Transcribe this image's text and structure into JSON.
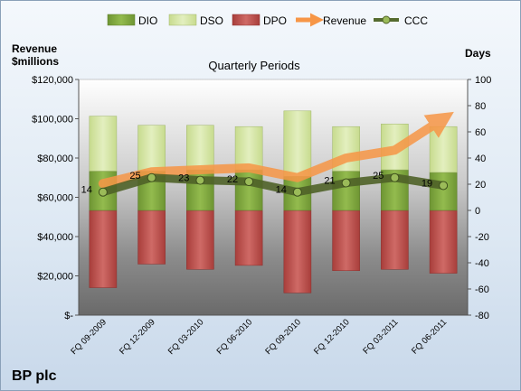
{
  "chart_data": {
    "type": "bar",
    "title": "Quarterly Periods",
    "company": "BP plc",
    "left_axis_label": [
      "Revenue",
      "$millions"
    ],
    "right_axis_label": "Days",
    "left_ylim": [
      0,
      120000
    ],
    "right_ylim": [
      -80,
      100
    ],
    "left_ticks": [
      "$-",
      "$20,000",
      "$40,000",
      "$60,000",
      "$80,000",
      "$100,000",
      "$120,000"
    ],
    "right_ticks": [
      "-80",
      "-60",
      "-40",
      "-20",
      "0",
      "20",
      "40",
      "60",
      "80",
      "100"
    ],
    "categories": [
      "FQ 09-2009",
      "FQ 12-2009",
      "FQ 03-2010",
      "FQ 06-2010",
      "FQ 09-2010",
      "FQ 12-2010",
      "FQ 03-2011",
      "FQ 06-2011"
    ],
    "legend": [
      "DIO",
      "DSO",
      "DPO",
      "Revenue",
      "CCC"
    ],
    "legend_position": "top",
    "grid": false,
    "series": [
      {
        "name": "DIO",
        "axis": "days",
        "color": "#7fa63d",
        "values": [
          30,
          30,
          31,
          31,
          26,
          30,
          31,
          29
        ]
      },
      {
        "name": "DSO",
        "axis": "days",
        "color": "#d7e7a8",
        "values": [
          42,
          35,
          34,
          33,
          50,
          34,
          35,
          35
        ]
      },
      {
        "name": "DPO",
        "axis": "days",
        "color": "#c0504d",
        "values": [
          -59,
          -41,
          -45,
          -42,
          -63,
          -46,
          -45,
          -48
        ]
      },
      {
        "name": "Revenue",
        "axis": "revenue",
        "color": "#f79646",
        "values": [
          67000,
          73000,
          74000,
          75000,
          70000,
          80000,
          84000,
          100000
        ]
      },
      {
        "name": "CCC",
        "axis": "days",
        "color": "#6b8e23",
        "values": [
          14,
          25,
          23,
          22,
          14,
          21,
          25,
          19
        ]
      }
    ],
    "ccc_labels": [
      "14",
      "25",
      "23",
      "22",
      "14",
      "21",
      "25",
      "19"
    ]
  }
}
